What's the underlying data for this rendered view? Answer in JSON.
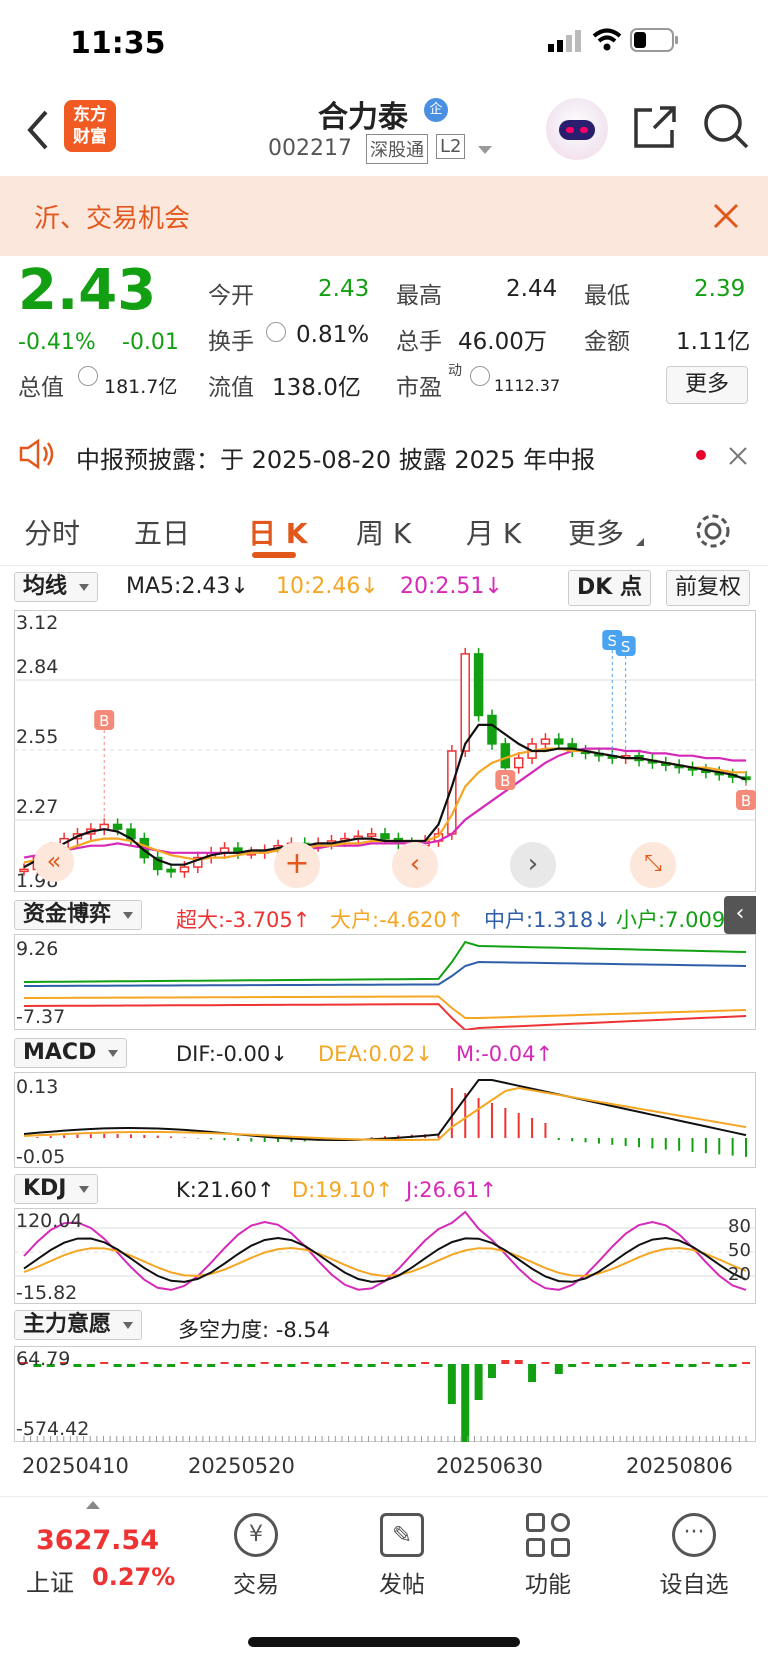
{
  "status_bar": {
    "time": "11:35"
  },
  "header": {
    "back_icon": "chevron-left-icon",
    "app_logo": "东方\n财富",
    "stock_name": "合力泰",
    "badge": "企",
    "stock_code": "002217",
    "tag1": "深股通",
    "tag2": "L2"
  },
  "banner": {
    "text": "沂、交易机会"
  },
  "quote": {
    "price": "2.43",
    "change_pct": "-0.41%",
    "change": "-0.01",
    "open_label": "今开",
    "open": "2.43",
    "high_label": "最高",
    "high": "2.44",
    "low_label": "最低",
    "low": "2.39",
    "turnover_label": "换手",
    "turnover": "0.81%",
    "volume_label": "总手",
    "volume": "46.00万",
    "amount_label": "金额",
    "amount": "1.11亿",
    "mktcap_label": "总值",
    "mktcap": "181.7亿",
    "float_label": "流值",
    "float": "138.0亿",
    "pe_label": "市盈",
    "pe_sup": "动",
    "pe": "1112.37",
    "more_button": "更多"
  },
  "notice": {
    "text": "中报预披露：于 2025-08-20 披露 2025 年中报"
  },
  "tabs": [
    {
      "label": "分时"
    },
    {
      "label": "五日"
    },
    {
      "label": "日 K"
    },
    {
      "label": "周 K"
    },
    {
      "label": "月 K"
    },
    {
      "label": "更多"
    }
  ],
  "ma_bar": {
    "selector": "均线",
    "ma5": "MA5:2.43↓",
    "ma10": "10:2.46↓",
    "ma20": "20:2.51↓",
    "dk_button": "DK 点",
    "fq_button": "前复权"
  },
  "chart_data": {
    "type": "line",
    "title": "",
    "x_tick_labels": [
      "20250410",
      "20250520",
      "20250630",
      "20250806"
    ],
    "price_axis_ticks": [
      "3.12",
      "2.84",
      "2.55",
      "2.27",
      "1.98"
    ],
    "ylim": [
      1.98,
      3.12
    ],
    "close": [
      2.05,
      2.1,
      2.14,
      2.18,
      2.2,
      2.22,
      2.24,
      2.22,
      2.18,
      2.1,
      2.05,
      2.04,
      2.06,
      2.1,
      2.12,
      2.14,
      2.12,
      2.12,
      2.13,
      2.15,
      2.16,
      2.15,
      2.16,
      2.17,
      2.18,
      2.19,
      2.2,
      2.18,
      2.16,
      2.15,
      2.17,
      2.2,
      2.55,
      2.96,
      2.7,
      2.58,
      2.48,
      2.52,
      2.58,
      2.6,
      2.58,
      2.55,
      2.54,
      2.53,
      2.52,
      2.53,
      2.51,
      2.5,
      2.49,
      2.48,
      2.47,
      2.46,
      2.45,
      2.44,
      2.43
    ],
    "ma5": [
      2.06,
      2.09,
      2.12,
      2.16,
      2.19,
      2.21,
      2.22,
      2.21,
      2.18,
      2.13,
      2.09,
      2.07,
      2.07,
      2.09,
      2.11,
      2.12,
      2.12,
      2.13,
      2.13,
      2.14,
      2.15,
      2.15,
      2.16,
      2.16,
      2.17,
      2.18,
      2.18,
      2.17,
      2.17,
      2.17,
      2.17,
      2.24,
      2.4,
      2.58,
      2.66,
      2.66,
      2.62,
      2.58,
      2.55,
      2.55,
      2.56,
      2.56,
      2.55,
      2.54,
      2.53,
      2.52,
      2.52,
      2.51,
      2.5,
      2.49,
      2.48,
      2.47,
      2.46,
      2.45,
      2.43
    ],
    "ma10": [
      2.08,
      2.09,
      2.11,
      2.13,
      2.15,
      2.17,
      2.18,
      2.18,
      2.17,
      2.15,
      2.13,
      2.11,
      2.1,
      2.09,
      2.1,
      2.1,
      2.11,
      2.12,
      2.12,
      2.13,
      2.14,
      2.14,
      2.15,
      2.15,
      2.16,
      2.16,
      2.17,
      2.17,
      2.17,
      2.17,
      2.17,
      2.19,
      2.28,
      2.4,
      2.46,
      2.5,
      2.52,
      2.54,
      2.55,
      2.56,
      2.56,
      2.55,
      2.55,
      2.54,
      2.53,
      2.52,
      2.52,
      2.51,
      2.5,
      2.49,
      2.48,
      2.48,
      2.47,
      2.46,
      2.46
    ],
    "ma20": [
      2.1,
      2.11,
      2.12,
      2.13,
      2.14,
      2.15,
      2.15,
      2.16,
      2.15,
      2.14,
      2.13,
      2.12,
      2.12,
      2.12,
      2.12,
      2.12,
      2.12,
      2.13,
      2.13,
      2.13,
      2.14,
      2.14,
      2.14,
      2.15,
      2.15,
      2.15,
      2.16,
      2.16,
      2.16,
      2.16,
      2.16,
      2.17,
      2.2,
      2.26,
      2.3,
      2.34,
      2.38,
      2.42,
      2.46,
      2.5,
      2.53,
      2.55,
      2.56,
      2.56,
      2.56,
      2.55,
      2.55,
      2.54,
      2.54,
      2.53,
      2.53,
      2.52,
      2.52,
      2.51,
      2.51
    ],
    "markers": [
      {
        "type": "B",
        "index": 6
      },
      {
        "type": "B",
        "index": 36
      },
      {
        "type": "S",
        "index": 44
      },
      {
        "type": "S",
        "index": 45
      },
      {
        "type": "B",
        "index": 54
      }
    ]
  },
  "capital": {
    "selector": "资金博弈",
    "super": "超大:-3.705↑",
    "big": "大户:-4.620↑",
    "mid": "中户:1.318↓",
    "small": "小户:7.009↓",
    "axis_top": "9.26",
    "axis_bottom": "-7.37"
  },
  "macd": {
    "selector": "MACD",
    "dif": "DIF:-0.00↓",
    "dea": "DEA:0.02↓",
    "m": "M:-0.04↑",
    "axis_top": "0.13",
    "axis_bottom": "-0.05"
  },
  "kdj": {
    "selector": "KDJ",
    "k": "K:21.60↑",
    "d": "D:19.10↑",
    "j": "J:26.61↑",
    "axis_top": "120.04",
    "axis_bottom": "-15.82",
    "r80": "80",
    "r50": "50",
    "r20": "20"
  },
  "main_force": {
    "selector": "主力意愿",
    "label": "多空力度: -8.54",
    "axis_top": "64.79",
    "axis_bottom": "-574.42"
  },
  "bottom_bar": {
    "index_value": "3627.54",
    "index_name": "上证",
    "index_change": "0.27%",
    "trade": "交易",
    "post": "发帖",
    "func": "功能",
    "watch": "设自选"
  }
}
